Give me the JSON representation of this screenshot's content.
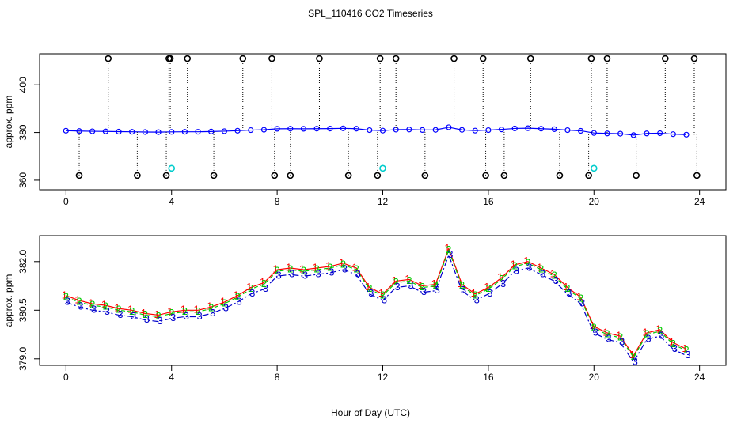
{
  "chart_data": [
    {
      "type": "line",
      "title": "SPL_110416  CO2 Timeseries",
      "ylabel": "approx. ppm",
      "xlim": [
        -1,
        25
      ],
      "xticks": [
        0,
        4,
        8,
        12,
        16,
        20,
        24
      ],
      "ylim": [
        356,
        413
      ],
      "yticks": [
        360,
        380,
        400
      ],
      "x": [
        0,
        0.5,
        1,
        1.5,
        2,
        2.5,
        3,
        3.5,
        4,
        4.5,
        5,
        5.5,
        6,
        6.5,
        7,
        7.5,
        8,
        8.5,
        9,
        9.5,
        10,
        10.5,
        11,
        11.5,
        12,
        12.5,
        13,
        13.5,
        14,
        14.5,
        15,
        15.5,
        16,
        16.5,
        17,
        17.5,
        18,
        18.5,
        19,
        19.5,
        20,
        20.5,
        21,
        21.5,
        22,
        22.5,
        23,
        23.5
      ],
      "series": [
        {
          "color": "#0000ff",
          "values": [
            380.75,
            380.6,
            380.5,
            380.45,
            380.35,
            380.3,
            380.2,
            380.15,
            380.25,
            380.3,
            380.3,
            380.4,
            380.55,
            380.75,
            381.0,
            381.15,
            381.55,
            381.6,
            381.55,
            381.6,
            381.65,
            381.75,
            381.6,
            381.0,
            380.8,
            381.2,
            381.25,
            381.05,
            381.1,
            382.2,
            381.1,
            380.8,
            381.0,
            381.3,
            381.7,
            381.8,
            381.6,
            381.4,
            381.0,
            380.7,
            379.8,
            379.6,
            379.5,
            378.9,
            379.6,
            379.7,
            379.3,
            379.1
          ]
        }
      ],
      "outliers": {
        "color": "#000000",
        "x": [
          1.6,
          3.9,
          3.95,
          4.6,
          6.7,
          7.8,
          9.6,
          11.9,
          12.5,
          14.7,
          15.8,
          17.6,
          19.9,
          20.5,
          22.7,
          23.8,
          0.5,
          2.7,
          3.8,
          5.6,
          7.9,
          8.5,
          10.7,
          11.8,
          13.6,
          15.9,
          16.6,
          18.7,
          19.8,
          21.6,
          23.9
        ],
        "values": [
          411,
          411,
          411,
          411,
          411,
          411,
          411,
          411,
          411,
          411,
          411,
          411,
          411,
          411,
          411,
          411,
          362,
          362,
          362,
          362,
          362,
          362,
          362,
          362,
          362,
          362,
          362,
          362,
          362,
          362,
          362
        ]
      },
      "flags": {
        "color": "#00cccc",
        "x": [
          4,
          12,
          20
        ],
        "values": [
          365,
          365,
          365
        ]
      }
    },
    {
      "type": "line",
      "ylabel": "approx. ppm",
      "xlabel": "Hour of Day (UTC)",
      "xlim": [
        -1,
        25
      ],
      "xticks": [
        0,
        4,
        8,
        12,
        16,
        20,
        24
      ],
      "ylim": [
        378.8,
        382.8
      ],
      "yticks": [
        {
          "value": 379,
          "label": "379.0"
        },
        380.5,
        {
          "value": 382,
          "label": "382.0"
        }
      ],
      "x": [
        0,
        0.5,
        1,
        1.5,
        2,
        2.5,
        3,
        3.5,
        4,
        4.5,
        5,
        5.5,
        6,
        6.5,
        7,
        7.5,
        8,
        8.5,
        9,
        9.5,
        10,
        10.5,
        11,
        11.5,
        12,
        12.5,
        13,
        13.5,
        14,
        14.5,
        15,
        15.5,
        16,
        16.5,
        17,
        17.5,
        18,
        18.5,
        19,
        19.5,
        20,
        20.5,
        21,
        21.5,
        22,
        22.5,
        23,
        23.5
      ],
      "series": [
        {
          "symbol": "1",
          "color": "#ff0000",
          "values": [
            380.95,
            380.8,
            380.7,
            380.65,
            380.55,
            380.5,
            380.4,
            380.35,
            380.45,
            380.5,
            380.5,
            380.6,
            380.75,
            380.95,
            381.2,
            381.35,
            381.75,
            381.8,
            381.75,
            381.8,
            381.85,
            381.95,
            381.8,
            381.2,
            381.0,
            381.4,
            381.45,
            381.25,
            381.3,
            382.4,
            381.3,
            381.0,
            381.2,
            381.5,
            381.9,
            382.0,
            381.8,
            381.6,
            381.2,
            380.9,
            380.0,
            379.8,
            379.7,
            379.1,
            379.8,
            379.9,
            379.5,
            379.3
          ]
        },
        {
          "symbol": "2",
          "color": "#00cc00",
          "values": [
            380.9,
            380.75,
            380.65,
            380.6,
            380.5,
            380.45,
            380.35,
            380.3,
            380.4,
            380.45,
            380.45,
            380.55,
            380.7,
            380.9,
            381.15,
            381.3,
            381.7,
            381.75,
            381.7,
            381.75,
            381.8,
            381.9,
            381.75,
            381.15,
            380.95,
            381.35,
            381.4,
            381.2,
            381.25,
            382.35,
            381.25,
            380.95,
            381.15,
            381.45,
            381.85,
            381.95,
            381.75,
            381.55,
            381.15,
            380.85,
            379.95,
            379.75,
            379.65,
            379.05,
            379.75,
            379.85,
            379.45,
            379.25
          ]
        },
        {
          "symbol": "3",
          "color": "#0000cc",
          "values": [
            380.75,
            380.6,
            380.5,
            380.45,
            380.35,
            380.3,
            380.2,
            380.15,
            380.25,
            380.3,
            380.3,
            380.4,
            380.55,
            380.75,
            381.0,
            381.15,
            381.55,
            381.6,
            381.55,
            381.6,
            381.65,
            381.75,
            381.6,
            381.0,
            380.8,
            381.2,
            381.25,
            381.05,
            381.1,
            382.2,
            381.1,
            380.8,
            381.0,
            381.3,
            381.7,
            381.8,
            381.6,
            381.4,
            381.0,
            380.7,
            379.8,
            379.6,
            379.5,
            378.9,
            379.6,
            379.7,
            379.3,
            379.1
          ]
        }
      ]
    }
  ]
}
